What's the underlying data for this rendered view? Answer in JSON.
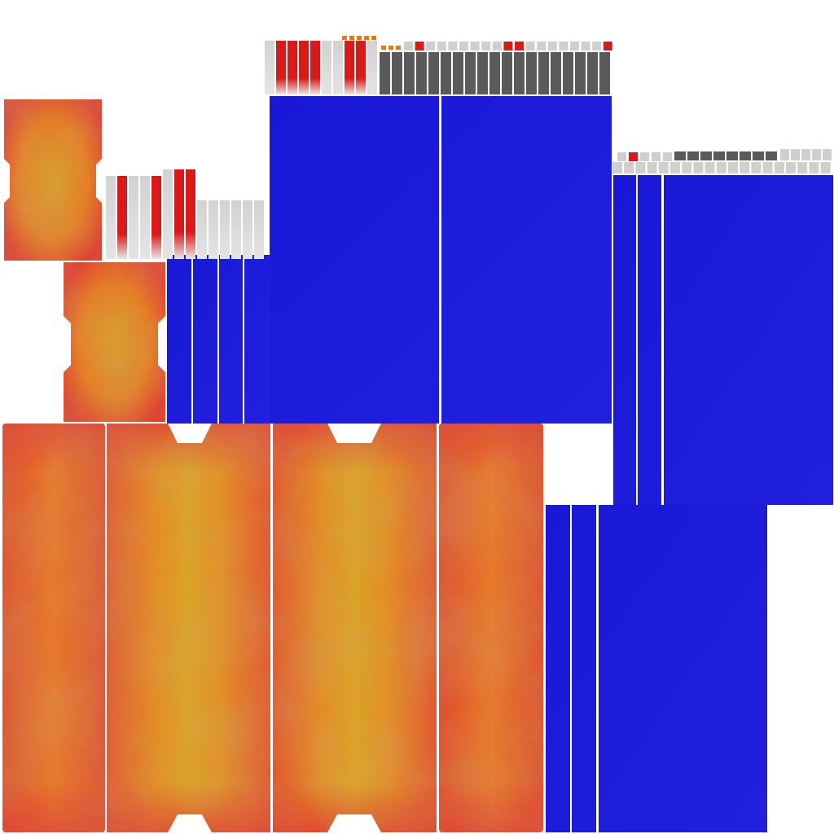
{
  "canvas": {
    "background": "#ffffff"
  },
  "palette": {
    "blue": "#1a1ad8",
    "blue_light": "#2222e0",
    "orange_core": "#e0a018",
    "orange_mid": "#ee7a1c",
    "orange_edge": "#e23a2a",
    "red_edge": "#d6183a",
    "grey_light": "#cfcfcf",
    "grey_strip_dark": "#5a5a5a",
    "red_strip": "#d81a1a",
    "orange_dot": "#e07820",
    "seam_white": "#ffffff"
  },
  "regions": [
    {
      "name": "orange-small-panel-top",
      "kind": "orange-notched"
    },
    {
      "name": "orange-small-panel-middle",
      "kind": "orange-notched"
    },
    {
      "name": "orange-tall-panel-1",
      "kind": "orange-plain"
    },
    {
      "name": "orange-tall-panel-2",
      "kind": "orange-notched"
    },
    {
      "name": "orange-tall-panel-3",
      "kind": "orange-notched"
    },
    {
      "name": "orange-tall-panel-4",
      "kind": "orange-plain"
    },
    {
      "name": "blue-panel-top-center",
      "kind": "blue"
    },
    {
      "name": "blue-panel-left-strips",
      "kind": "blue"
    },
    {
      "name": "blue-panel-right",
      "kind": "blue"
    },
    {
      "name": "blue-panel-bottom",
      "kind": "blue"
    },
    {
      "name": "strip-bar-top",
      "kind": "strips"
    },
    {
      "name": "strip-bar-left",
      "kind": "strips"
    },
    {
      "name": "strip-bar-right",
      "kind": "strips"
    }
  ]
}
